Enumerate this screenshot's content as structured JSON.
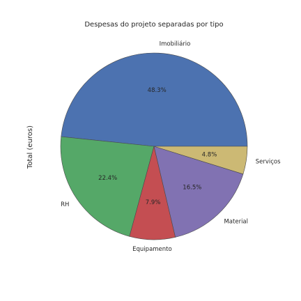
{
  "chart_data": {
    "type": "pie",
    "title": "Despesas do projeto separadas por tipo",
    "ylabel": "Total (euros)",
    "categories": [
      "Imobiliário",
      "RH",
      "Equipamento",
      "Material",
      "Serviços"
    ],
    "values": [
      48.3,
      22.4,
      7.9,
      16.5,
      4.8
    ],
    "pct_labels": [
      "48.3%",
      "22.4%",
      "7.9%",
      "16.5%",
      "4.8%"
    ],
    "colors": [
      "#4C72B0",
      "#55A868",
      "#C44E52",
      "#8172B2",
      "#CCB974"
    ],
    "start_angle": "0deg (east)",
    "direction": "counterclockwise",
    "legend": "none"
  }
}
